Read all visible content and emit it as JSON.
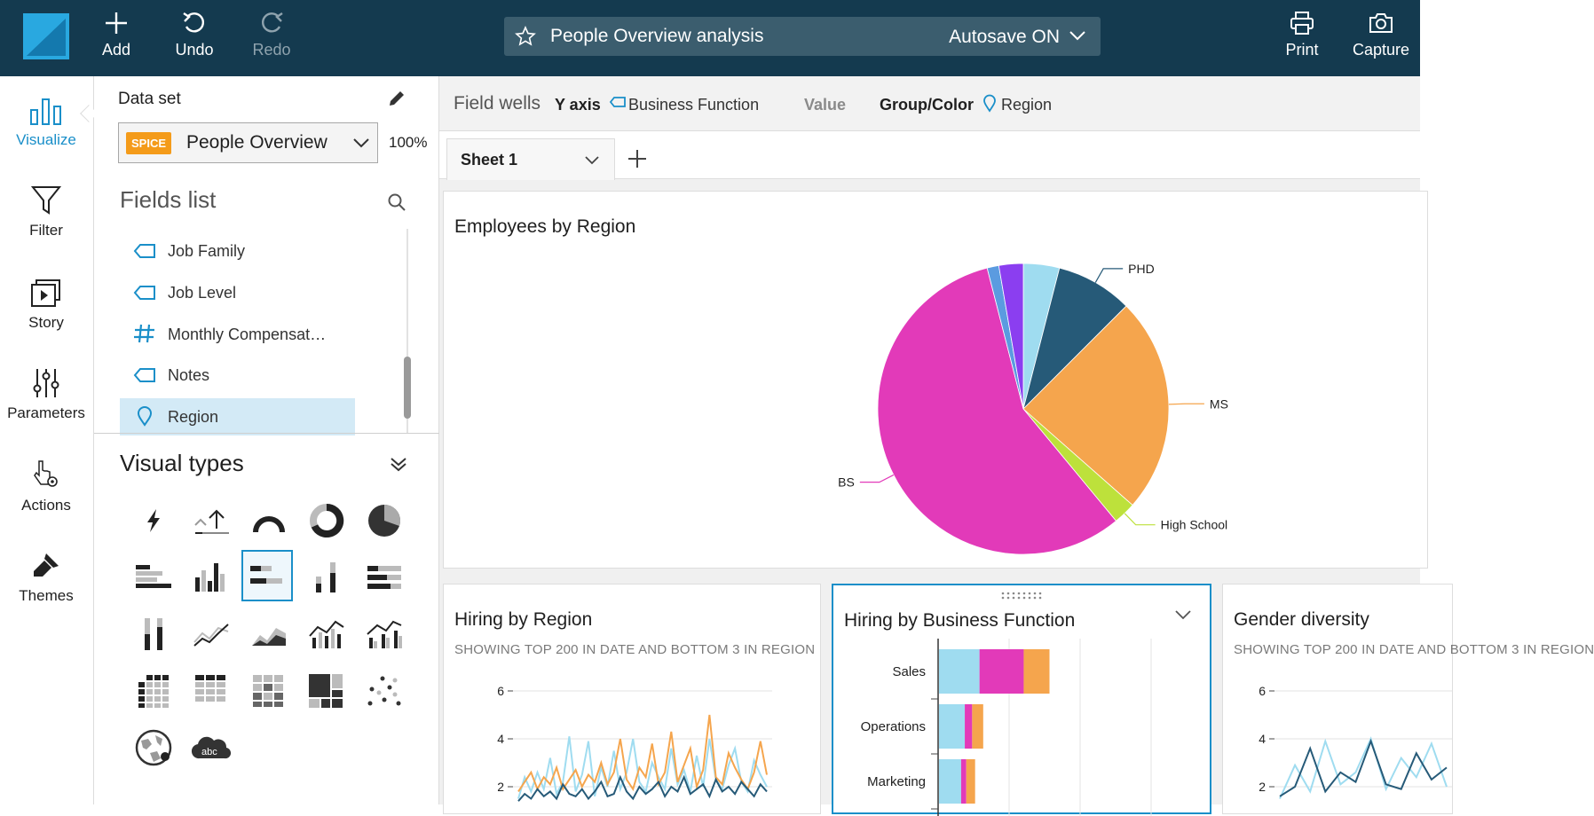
{
  "topbar": {
    "add_label": "Add",
    "undo_label": "Undo",
    "redo_label": "Redo",
    "analysis_title": "People Overview analysis",
    "autosave_label": "Autosave ON",
    "print_label": "Print",
    "capture_label": "Capture"
  },
  "leftnav": {
    "items": [
      {
        "label": "Visualize",
        "icon": "bar-chart-icon",
        "active": true
      },
      {
        "label": "Filter",
        "icon": "funnel-icon"
      },
      {
        "label": "Story",
        "icon": "story-play-icon"
      },
      {
        "label": "Parameters",
        "icon": "sliders-icon"
      },
      {
        "label": "Actions",
        "icon": "pointer-gear-icon"
      },
      {
        "label": "Themes",
        "icon": "paintbrush-icon"
      }
    ]
  },
  "dataset": {
    "label": "Data set",
    "badge": "SPICE",
    "name": "People Overview",
    "percent": "100%"
  },
  "fields_list": {
    "title": "Fields list",
    "items": [
      {
        "name": "Job Family",
        "icon": "dimension-tag-icon"
      },
      {
        "name": "Job Level",
        "icon": "dimension-tag-icon"
      },
      {
        "name": "Monthly Compensat…",
        "icon": "measure-hash-icon"
      },
      {
        "name": "Notes",
        "icon": "dimension-tag-icon"
      },
      {
        "name": "Region",
        "icon": "geo-pin-icon",
        "selected": true
      }
    ]
  },
  "visual_types": {
    "title": "Visual types",
    "items": [
      "autograph-icon",
      "kpi-icon",
      "gauge-icon",
      "donut-icon",
      "pie-icon",
      "horizontal-bar-icon",
      "vertical-bar-icon",
      "stacked-horizontal-bar-icon",
      "stacked-vertical-bar-icon",
      "percent-horizontal-bar-icon",
      "percent-vertical-bar-icon",
      "line-icon",
      "area-icon",
      "combo-bar-line-icon",
      "combo-clustered-line-icon",
      "pivot-table-icon",
      "table-icon",
      "heatmap-icon",
      "treemap-icon",
      "scatter-icon",
      "geo-map-icon",
      "word-cloud-icon"
    ],
    "selected_index": 7,
    "word_cloud_text": "abc"
  },
  "field_wells": {
    "title": "Field wells",
    "y_axis_label": "Y axis",
    "y_axis_value": "Business Function",
    "value_label": "Value",
    "group_label": "Group/Color",
    "group_value": "Region"
  },
  "sheet": {
    "tab_label": "Sheet 1"
  },
  "colors": {
    "topbar": "#143a4f",
    "accent": "#1a8fc9",
    "spice_badge": "#f49b1a",
    "series_light_blue": "#9fdcf0",
    "series_dark_blue": "#265a78",
    "series_orange": "#f5a54d",
    "series_lime": "#bde13b",
    "series_magenta": "#e23ab9",
    "series_blue": "#5b9be0",
    "series_purple": "#8b3ef0"
  },
  "visuals": [
    {
      "title": "Employees by Region",
      "chart_data": {
        "type": "pie",
        "slices": [
          {
            "label": "",
            "value": 4,
            "color": "#9fdcf0"
          },
          {
            "label": "PHD",
            "value": 8.5,
            "color": "#265a78"
          },
          {
            "label": "MS",
            "value": 24,
            "color": "#f5a54d"
          },
          {
            "label": "High School",
            "value": 2.5,
            "color": "#bde13b"
          },
          {
            "label": "BS",
            "value": 57,
            "color": "#e23ab9"
          },
          {
            "label": "",
            "value": 1.3,
            "color": "#5b9be0"
          },
          {
            "label": "",
            "value": 2.7,
            "color": "#8b3ef0"
          }
        ]
      }
    },
    {
      "title": "Hiring by Region",
      "subtitle": "SHOWING TOP 200 IN DATE AND BOTTOM 3 IN REGION",
      "chart_data": {
        "type": "line",
        "y_ticks": [
          "6",
          "4",
          "2"
        ],
        "ylim": [
          0,
          6
        ],
        "series": [
          {
            "color": "#9fdcf0",
            "values": [
              1.5,
              2.4,
              1.8,
              2.6,
              1.9,
              3.2,
              1.7,
              2.2,
              4.1,
              1.8,
              2.5,
              3.9,
              1.6,
              2.8,
              2.0,
              3.5,
              1.9,
              2.6,
              4.0,
              2.2,
              1.8,
              3.0,
              2.4,
              1.9,
              3.6,
              2.1,
              2.7,
              1.8,
              3.3,
              2.0,
              4.0,
              2.3,
              1.9,
              2.9,
              3.6,
              2.2,
              1.8,
              3.1,
              2.5,
              2.0
            ]
          },
          {
            "color": "#f5a54d",
            "values": [
              1.8,
              2.2,
              2.6,
              1.9,
              2.4,
              2.1,
              2.8,
              1.9,
              2.3,
              2.7,
              2.0,
              2.5,
              2.2,
              3.0,
              2.1,
              2.6,
              4.0,
              2.3,
              1.9,
              2.8,
              2.4,
              3.8,
              2.1,
              2.6,
              4.3,
              2.2,
              2.9,
              3.6,
              2.0,
              2.7,
              5.0,
              2.4,
              2.1,
              3.4,
              2.8,
              2.3,
              1.9,
              2.6,
              3.9,
              2.5
            ]
          },
          {
            "color": "#265a78",
            "values": [
              1.4,
              1.7,
              1.5,
              1.9,
              1.6,
              1.8,
              1.5,
              2.1,
              1.7,
              1.6,
              1.9,
              1.5,
              1.8,
              2.2,
              1.6,
              1.7,
              2.4,
              1.8,
              1.5,
              2.0,
              1.7,
              1.9,
              2.2,
              1.6,
              2.0,
              1.8,
              2.4,
              1.7,
              1.9,
              2.1,
              1.6,
              2.3,
              1.8,
              2.0,
              1.7,
              2.2,
              1.9,
              1.6,
              2.1,
              1.8
            ]
          }
        ]
      }
    },
    {
      "title": "Hiring by Business Function",
      "chart_data": {
        "type": "bar",
        "orientation": "horizontal",
        "stacked": true,
        "categories": [
          "Sales",
          "Operations",
          "Marketing"
        ],
        "series": [
          {
            "color": "#9fdcf0",
            "values": [
              55,
              35,
              30
            ]
          },
          {
            "color": "#e23ab9",
            "values": [
              60,
              10,
              7
            ]
          },
          {
            "color": "#f5a54d",
            "values": [
              35,
              15,
              12
            ]
          }
        ]
      }
    },
    {
      "title": "Gender diversity",
      "subtitle": "SHOWING TOP 200 IN DATE AND BOTTOM 3 IN REGION",
      "chart_data": {
        "type": "line",
        "y_ticks": [
          "6",
          "4",
          "2"
        ],
        "ylim": [
          0,
          6
        ],
        "series": [
          {
            "color": "#9fdcf0",
            "values": [
              1.5,
              2.9,
              1.8,
              3.9,
              2.1,
              2.6,
              4.0,
              1.9,
              3.2,
              2.4,
              3.8,
              2.0
            ]
          },
          {
            "color": "#265a78",
            "values": [
              1.6,
              2.0,
              3.6,
              1.8,
              2.6,
              2.2,
              3.9,
              2.1,
              1.9,
              3.4,
              2.3,
              2.8
            ]
          }
        ]
      }
    }
  ]
}
